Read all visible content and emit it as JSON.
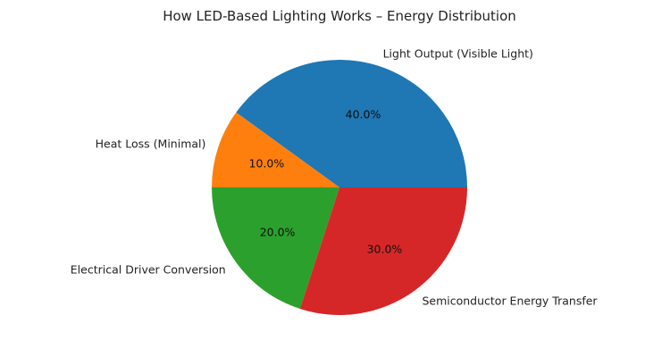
{
  "chart_data": {
    "type": "pie",
    "title": "How LED-Based Lighting Works – Energy Distribution",
    "categories": [
      "Light Output (Visible Light)",
      "Heat Loss (Minimal)",
      "Electrical Driver Conversion",
      "Semiconductor Energy Transfer"
    ],
    "values": [
      40,
      10,
      20,
      30
    ],
    "percent_labels": [
      "40.0%",
      "10.0%",
      "20.0%",
      "30.0%"
    ],
    "colors": [
      "#1f77b4",
      "#ff7f0e",
      "#2ca02c",
      "#d62728"
    ],
    "start_angle": 0,
    "direction": "counterclockwise",
    "legend": "none"
  }
}
